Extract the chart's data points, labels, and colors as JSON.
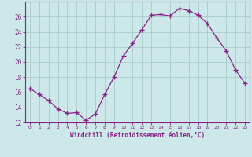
{
  "x": [
    0,
    1,
    2,
    3,
    4,
    5,
    6,
    7,
    8,
    9,
    10,
    11,
    12,
    13,
    14,
    15,
    16,
    17,
    18,
    19,
    20,
    21,
    22,
    23
  ],
  "y": [
    16.5,
    15.7,
    14.9,
    13.8,
    13.2,
    13.3,
    12.3,
    13.1,
    15.7,
    18.0,
    20.8,
    22.5,
    24.3,
    26.2,
    26.3,
    26.1,
    27.1,
    26.8,
    26.2,
    25.1,
    23.2,
    21.5,
    19.0,
    17.2
  ],
  "line_color": "#882288",
  "marker": "+",
  "marker_size": 4,
  "bg_color": "#cce8e8",
  "grid_color": "#aacccc",
  "xlabel": "Windchill (Refroidissement éolien,°C)",
  "ylim": [
    12,
    28
  ],
  "xlim": [
    -0.5,
    23.5
  ],
  "yticks": [
    12,
    14,
    16,
    18,
    20,
    22,
    24,
    26
  ],
  "xticks": [
    0,
    1,
    2,
    3,
    4,
    5,
    6,
    7,
    8,
    9,
    10,
    11,
    12,
    13,
    14,
    15,
    16,
    17,
    18,
    19,
    20,
    21,
    22,
    23
  ],
  "tick_color": "#882288",
  "label_color": "#882288",
  "spine_color": "#882288",
  "lw": 0.9
}
